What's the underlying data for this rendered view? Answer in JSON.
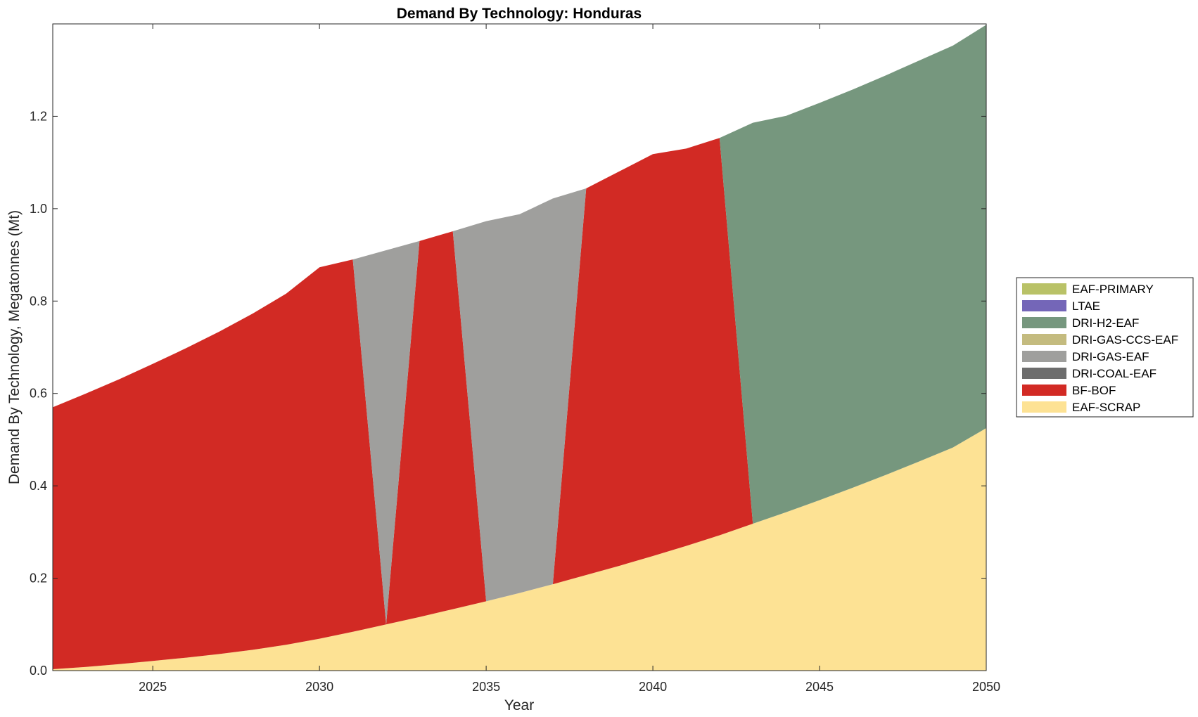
{
  "chart_data": {
    "type": "area",
    "title": "Demand By Technology: Honduras",
    "xlabel": "Year",
    "ylabel": "Demand By Technology, Megatonnes (Mt)",
    "xlim": [
      2022,
      2050
    ],
    "ylim": [
      0,
      1.4
    ],
    "x_ticks": [
      2025,
      2030,
      2035,
      2040,
      2045,
      2050
    ],
    "y_ticks": [
      0.0,
      0.2,
      0.4,
      0.6,
      0.8,
      1.0,
      1.2
    ],
    "y_tick_labels": [
      "0.0",
      "0.2",
      "0.4",
      "0.6",
      "0.8",
      "1.0",
      "1.2"
    ],
    "grid": false,
    "stacked": true,
    "legend_position": "right",
    "x": [
      2022,
      2023,
      2024,
      2025,
      2026,
      2027,
      2028,
      2029,
      2030,
      2031,
      2032,
      2033,
      2034,
      2035,
      2036,
      2037,
      2038,
      2039,
      2040,
      2041,
      2042,
      2043,
      2044,
      2045,
      2046,
      2047,
      2048,
      2049,
      2050
    ],
    "series": [
      {
        "name": "EAF-SCRAP",
        "color": "#fde294",
        "values": [
          0.003,
          0.008,
          0.014,
          0.021,
          0.028,
          0.036,
          0.045,
          0.056,
          0.069,
          0.084,
          0.1,
          0.116,
          0.133,
          0.15,
          0.168,
          0.187,
          0.207,
          0.227,
          0.248,
          0.27,
          0.293,
          0.318,
          0.343,
          0.369,
          0.396,
          0.424,
          0.453,
          0.483,
          0.525
        ]
      },
      {
        "name": "BF-BOF",
        "color": "#d22a24",
        "values": [
          0.567,
          0.592,
          0.617,
          0.643,
          0.67,
          0.698,
          0.728,
          0.76,
          0.804,
          0.806,
          0.0,
          0.814,
          0.818,
          0.0,
          0.0,
          0.0,
          0.837,
          0.854,
          0.87,
          0.86,
          0.86,
          0.0,
          0.0,
          0.0,
          0.0,
          0.0,
          0.0,
          0.0,
          0.0
        ]
      },
      {
        "name": "DRI-COAL-EAF",
        "color": "#6d6d6d",
        "values": [
          0,
          0,
          0,
          0,
          0,
          0,
          0,
          0,
          0,
          0,
          0,
          0,
          0,
          0,
          0,
          0,
          0,
          0,
          0,
          0,
          0,
          0,
          0,
          0,
          0,
          0,
          0,
          0,
          0
        ]
      },
      {
        "name": "DRI-GAS-EAF",
        "color": "#9f9f9d",
        "values": [
          0,
          0,
          0,
          0,
          0,
          0,
          0,
          0,
          0,
          0,
          0.81,
          0,
          0,
          0.823,
          0.82,
          0.835,
          0,
          0,
          0,
          0,
          0,
          0,
          0,
          0,
          0,
          0,
          0,
          0,
          0
        ]
      },
      {
        "name": "DRI-GAS-CCS-EAF",
        "color": "#c4bb7f",
        "values": [
          0,
          0,
          0,
          0,
          0,
          0,
          0,
          0,
          0,
          0,
          0,
          0,
          0,
          0,
          0,
          0,
          0,
          0,
          0,
          0,
          0,
          0,
          0,
          0,
          0,
          0,
          0,
          0,
          0
        ]
      },
      {
        "name": "DRI-H2-EAF",
        "color": "#76977e",
        "values": [
          0,
          0,
          0,
          0,
          0,
          0,
          0,
          0,
          0,
          0,
          0,
          0,
          0,
          0,
          0,
          0,
          0,
          0,
          0,
          0,
          0,
          0.868,
          0.858,
          0.86,
          0.862,
          0.865,
          0.868,
          0.87,
          0.873
        ]
      },
      {
        "name": "LTAE",
        "color": "#7466b8",
        "values": [
          0,
          0,
          0,
          0,
          0,
          0,
          0,
          0,
          0,
          0,
          0,
          0,
          0,
          0,
          0,
          0,
          0,
          0,
          0,
          0,
          0,
          0,
          0,
          0,
          0,
          0,
          0,
          0,
          0
        ]
      },
      {
        "name": "EAF-PRIMARY",
        "color": "#b9c267",
        "values": [
          0,
          0,
          0,
          0,
          0,
          0,
          0,
          0,
          0,
          0,
          0,
          0,
          0,
          0,
          0,
          0,
          0,
          0,
          0,
          0,
          0,
          0,
          0,
          0,
          0,
          0,
          0,
          0,
          0
        ]
      }
    ],
    "legend": [
      "EAF-PRIMARY",
      "LTAE",
      "DRI-H2-EAF",
      "DRI-GAS-CCS-EAF",
      "DRI-GAS-EAF",
      "DRI-COAL-EAF",
      "BF-BOF",
      "EAF-SCRAP"
    ]
  }
}
